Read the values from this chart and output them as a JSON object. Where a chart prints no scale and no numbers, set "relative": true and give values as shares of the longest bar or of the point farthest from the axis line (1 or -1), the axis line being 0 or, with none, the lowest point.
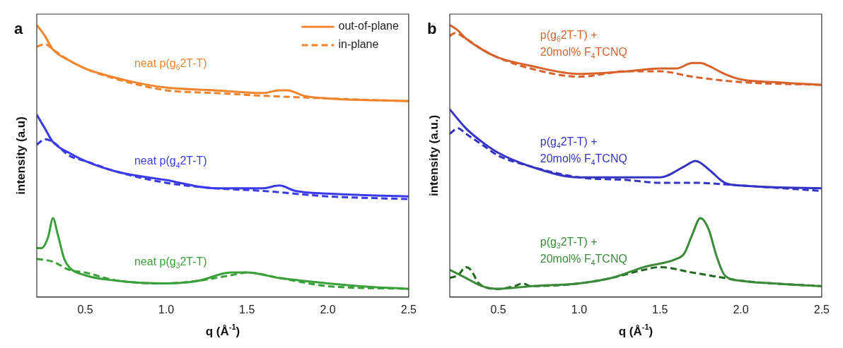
{
  "chart_data": [
    {
      "type": "line",
      "title": "a",
      "xlabel": "q (Å$^{-1}$)",
      "ylabel": "intensity (a.u)",
      "relative": true,
      "marker": "none",
      "grid": false,
      "legend": "top right",
      "xlim": [
        0.2,
        2.5
      ],
      "xticks": [
        {
          "value": 0.5,
          "label": "0.5"
        },
        {
          "value": 1.0,
          "label": "1.0"
        },
        {
          "value": 1.5,
          "label": "1.5"
        },
        {
          "value": 2.0,
          "label": "2.0"
        },
        {
          "value": 2.5,
          "label": "2.5"
        }
      ],
      "annotations": [
        "neat p(g$_{6}$2T-T)",
        "neat p(g$_{4}$2T-T)",
        "neat p(g$_{3}$2T-T)"
      ],
      "series": [
        {
          "name": "out-of-plane",
          "color": "#f0852d",
          "line_style": "solid",
          "x": [
            0.2,
            0.25,
            0.3,
            0.4,
            0.5,
            0.6,
            0.8,
            1.0,
            1.3,
            1.6,
            1.7,
            1.75,
            1.85,
            2.0,
            2.5
          ],
          "values": [
            1.0,
            0.96,
            0.91,
            0.87,
            0.84,
            0.82,
            0.79,
            0.77,
            0.76,
            0.75,
            0.76,
            0.76,
            0.74,
            0.73,
            0.72
          ]
        },
        {
          "name": "in-plane",
          "color": "#f0852d",
          "line_style": "dashed",
          "x": [
            0.2,
            0.25,
            0.3,
            0.4,
            0.5,
            0.7,
            1.0,
            1.3,
            1.6,
            2.0,
            2.5
          ],
          "values": [
            0.92,
            0.93,
            0.91,
            0.87,
            0.84,
            0.8,
            0.76,
            0.75,
            0.74,
            0.73,
            0.72
          ]
        },
        {
          "color": "#3a3ae8",
          "line_style": "solid",
          "x": [
            0.2,
            0.25,
            0.3,
            0.4,
            0.5,
            0.7,
            1.0,
            1.3,
            1.6,
            1.7,
            1.8,
            2.0,
            2.5
          ],
          "values": [
            0.67,
            0.62,
            0.57,
            0.53,
            0.5,
            0.46,
            0.43,
            0.4,
            0.4,
            0.41,
            0.39,
            0.38,
            0.37
          ]
        },
        {
          "color": "#3a3ae8",
          "line_style": "dashed",
          "x": [
            0.2,
            0.25,
            0.3,
            0.4,
            0.5,
            0.7,
            1.0,
            1.3,
            1.6,
            2.0,
            2.5
          ],
          "values": [
            0.56,
            0.58,
            0.57,
            0.52,
            0.5,
            0.46,
            0.42,
            0.4,
            0.39,
            0.37,
            0.36
          ]
        },
        {
          "color": "#3aa03a",
          "line_style": "solid",
          "x": [
            0.2,
            0.23,
            0.27,
            0.3,
            0.33,
            0.37,
            0.4,
            0.5,
            0.7,
            1.0,
            1.2,
            1.4,
            1.5,
            1.7,
            2.0,
            2.2,
            2.5
          ],
          "values": [
            0.18,
            0.18,
            0.22,
            0.29,
            0.23,
            0.14,
            0.11,
            0.08,
            0.06,
            0.05,
            0.06,
            0.09,
            0.09,
            0.07,
            0.05,
            0.04,
            0.03
          ]
        },
        {
          "color": "#3aa03a",
          "line_style": "dashed",
          "x": [
            0.2,
            0.3,
            0.4,
            0.5,
            0.7,
            1.0,
            1.2,
            1.4,
            1.5,
            1.7,
            2.0,
            2.5
          ],
          "values": [
            0.14,
            0.13,
            0.1,
            0.09,
            0.06,
            0.05,
            0.06,
            0.08,
            0.09,
            0.07,
            0.04,
            0.03
          ]
        }
      ]
    },
    {
      "type": "line",
      "title": "b",
      "xlabel": "q (Å$^{-1}$)",
      "ylabel": "intensity (a.u.)",
      "relative": true,
      "marker": "none",
      "grid": false,
      "xlim": [
        0.2,
        2.5
      ],
      "xticks": [
        {
          "value": 0.5,
          "label": "0.5"
        },
        {
          "value": 1.0,
          "label": "1.0"
        },
        {
          "value": 1.5,
          "label": "1.5"
        },
        {
          "value": 2.0,
          "label": "2.0"
        },
        {
          "value": 2.5,
          "label": "2.5"
        }
      ],
      "annotations": [
        "p(g$_{6}$2T-T) +\n20mol% F$_{4}$TCNQ",
        "p(g$_{4}$2T-T) +\n20mol% F$_{4}$TCNQ",
        "p(g$_{3}$2T-T) +\n20mol% F$_{4}$TCNQ"
      ],
      "series": [
        {
          "color": "#d9622b",
          "line_style": "solid",
          "x": [
            0.2,
            0.25,
            0.3,
            0.4,
            0.5,
            0.7,
            1.0,
            1.3,
            1.5,
            1.6,
            1.7,
            1.75,
            1.8,
            1.9,
            2.0,
            2.2,
            2.5
          ],
          "values": [
            1.0,
            0.98,
            0.95,
            0.91,
            0.88,
            0.85,
            0.82,
            0.83,
            0.84,
            0.84,
            0.86,
            0.86,
            0.85,
            0.82,
            0.8,
            0.79,
            0.78
          ]
        },
        {
          "color": "#d9622b",
          "line_style": "dashed",
          "x": [
            0.2,
            0.23,
            0.3,
            0.4,
            0.5,
            0.7,
            1.0,
            1.3,
            1.5,
            1.7,
            2.0,
            2.5
          ],
          "values": [
            0.96,
            0.97,
            0.95,
            0.91,
            0.88,
            0.84,
            0.81,
            0.83,
            0.83,
            0.81,
            0.79,
            0.78
          ]
        },
        {
          "color": "#3434c4",
          "line_style": "solid",
          "x": [
            0.2,
            0.3,
            0.4,
            0.5,
            0.7,
            1.0,
            1.3,
            1.5,
            1.65,
            1.72,
            1.8,
            1.9,
            2.0,
            2.5
          ],
          "values": [
            0.69,
            0.62,
            0.57,
            0.53,
            0.48,
            0.44,
            0.44,
            0.44,
            0.48,
            0.5,
            0.47,
            0.42,
            0.41,
            0.4
          ]
        },
        {
          "color": "#3434c4",
          "line_style": "dashed",
          "x": [
            0.2,
            0.25,
            0.3,
            0.4,
            0.5,
            0.7,
            1.0,
            1.3,
            1.5,
            1.7,
            2.0,
            2.5
          ],
          "values": [
            0.6,
            0.62,
            0.6,
            0.56,
            0.52,
            0.48,
            0.44,
            0.43,
            0.42,
            0.42,
            0.41,
            0.39
          ]
        },
        {
          "color": "#3a8a3a",
          "line_style": "solid",
          "x": [
            0.2,
            0.3,
            0.4,
            0.5,
            0.7,
            1.0,
            1.2,
            1.4,
            1.6,
            1.65,
            1.7,
            1.75,
            1.8,
            1.85,
            1.9,
            2.0,
            2.2,
            2.5
          ],
          "values": [
            0.1,
            0.07,
            0.04,
            0.03,
            0.04,
            0.05,
            0.07,
            0.11,
            0.14,
            0.16,
            0.23,
            0.29,
            0.25,
            0.15,
            0.08,
            0.06,
            0.05,
            0.04
          ]
        },
        {
          "color": "#1f6a1f",
          "line_style": "dashed",
          "x": [
            0.2,
            0.25,
            0.3,
            0.33,
            0.38,
            0.5,
            0.6,
            0.65,
            0.7,
            1.0,
            1.2,
            1.4,
            1.5,
            1.7,
            1.9,
            2.0,
            2.2,
            2.5
          ],
          "values": [
            0.07,
            0.08,
            0.11,
            0.1,
            0.05,
            0.03,
            0.04,
            0.05,
            0.04,
            0.05,
            0.07,
            0.1,
            0.11,
            0.09,
            0.07,
            0.06,
            0.05,
            0.04
          ]
        }
      ]
    }
  ]
}
